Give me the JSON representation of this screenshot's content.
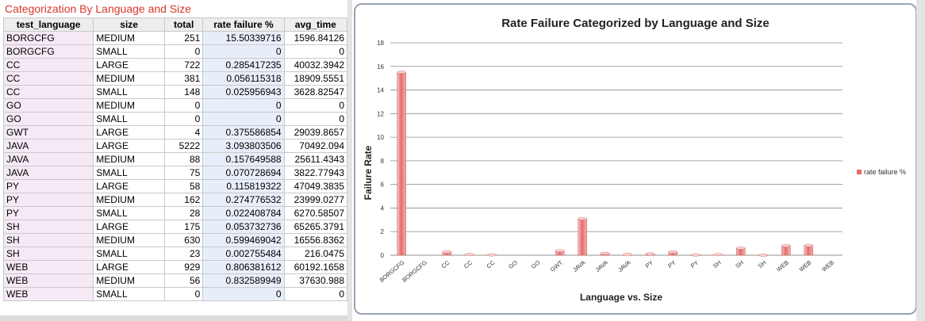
{
  "sheet": {
    "title": "Categorization By Language and Size",
    "headers": [
      "test_language",
      "size",
      "total",
      "rate failure %",
      "avg_time"
    ],
    "rows": [
      [
        "BORGCFG",
        "MEDIUM",
        "251",
        "15.50339716",
        "1596.84126"
      ],
      [
        "BORGCFG",
        "SMALL",
        "0",
        "0",
        "0"
      ],
      [
        "CC",
        "LARGE",
        "722",
        "0.285417235",
        "40032.3942"
      ],
      [
        "CC",
        "MEDIUM",
        "381",
        "0.056115318",
        "18909.5551"
      ],
      [
        "CC",
        "SMALL",
        "148",
        "0.025956943",
        "3628.82547"
      ],
      [
        "GO",
        "MEDIUM",
        "0",
        "0",
        "0"
      ],
      [
        "GO",
        "SMALL",
        "0",
        "0",
        "0"
      ],
      [
        "GWT",
        "LARGE",
        "4",
        "0.375586854",
        "29039.8657"
      ],
      [
        "JAVA",
        "LARGE",
        "5222",
        "3.093803506",
        "70492.094"
      ],
      [
        "JAVA",
        "MEDIUM",
        "88",
        "0.157649588",
        "25611.4343"
      ],
      [
        "JAVA",
        "SMALL",
        "75",
        "0.070728694",
        "3822.77943"
      ],
      [
        "PY",
        "LARGE",
        "58",
        "0.115819322",
        "47049.3835"
      ],
      [
        "PY",
        "MEDIUM",
        "162",
        "0.274776532",
        "23999.0277"
      ],
      [
        "PY",
        "SMALL",
        "28",
        "0.022408784",
        "6270.58507"
      ],
      [
        "SH",
        "LARGE",
        "175",
        "0.053732736",
        "65265.3791"
      ],
      [
        "SH",
        "MEDIUM",
        "630",
        "0.599469042",
        "16556.8362"
      ],
      [
        "SH",
        "SMALL",
        "23",
        "0.002755484",
        "216.0475"
      ],
      [
        "WEB",
        "LARGE",
        "929",
        "0.806381612",
        "60192.1658"
      ],
      [
        "WEB",
        "MEDIUM",
        "56",
        "0.832589949",
        "37630.988"
      ],
      [
        "WEB",
        "SMALL",
        "0",
        "0",
        "0"
      ]
    ]
  },
  "chart_data": {
    "type": "bar",
    "title": "Rate Failure Categorized by Language and Size",
    "xlabel": "Language vs. Size",
    "ylabel": "Failure Rate",
    "categories": [
      "BORGCFG",
      "BORGCFG",
      "CC",
      "CC",
      "CC",
      "GO",
      "GO",
      "GWT",
      "JAVA",
      "JAVA",
      "JAVA",
      "PY",
      "PY",
      "PY",
      "SH",
      "SH",
      "SH",
      "WEB",
      "WEB",
      "WEB"
    ],
    "series": [
      {
        "name": "rate failure %",
        "values": [
          15.50339716,
          0,
          0.285417235,
          0.056115318,
          0.025956943,
          0,
          0,
          0.375586854,
          3.093803506,
          0.157649588,
          0.070728694,
          0.115819322,
          0.274776532,
          0.022408784,
          0.053732736,
          0.599469042,
          0.002755484,
          0.806381612,
          0.832589949,
          0
        ]
      }
    ],
    "ylim": [
      0,
      18
    ],
    "yticks": [
      0,
      2,
      4,
      6,
      8,
      10,
      12,
      14,
      16,
      18
    ],
    "grid": true,
    "legend": "right",
    "colors": {
      "bar": "#e46c6c",
      "bar_light": "#f6c3c3",
      "grid": "#8c8c8c"
    }
  }
}
